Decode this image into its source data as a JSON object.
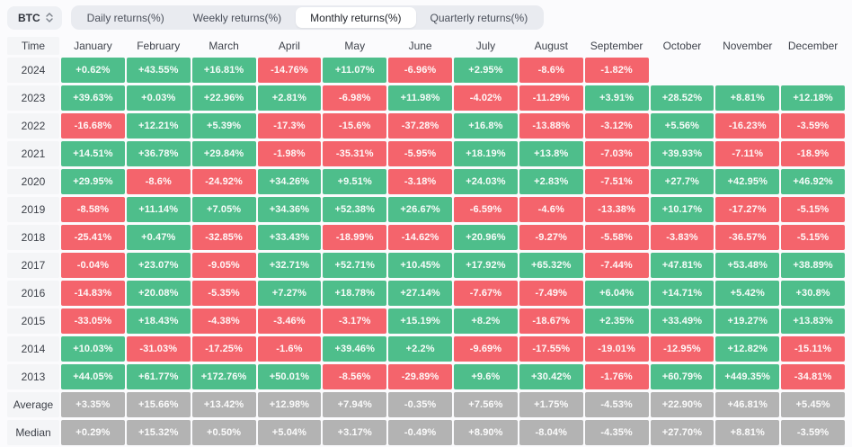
{
  "toolbar": {
    "symbol": "BTC",
    "tabs": [
      {
        "label": "Daily returns(%)",
        "active": false
      },
      {
        "label": "Weekly returns(%)",
        "active": false
      },
      {
        "label": "Monthly returns(%)",
        "active": true
      },
      {
        "label": "Quarterly returns(%)",
        "active": false
      }
    ]
  },
  "table": {
    "corner_label": "Time",
    "columns": [
      "January",
      "February",
      "March",
      "April",
      "May",
      "June",
      "July",
      "August",
      "September",
      "October",
      "November",
      "December"
    ],
    "rows": [
      {
        "label": "2024",
        "type": "year",
        "values": [
          "+0.62%",
          "+43.55%",
          "+16.81%",
          "-14.76%",
          "+11.07%",
          "-6.96%",
          "+2.95%",
          "-8.6%",
          "-1.82%",
          "",
          "",
          ""
        ]
      },
      {
        "label": "2023",
        "type": "year",
        "values": [
          "+39.63%",
          "+0.03%",
          "+22.96%",
          "+2.81%",
          "-6.98%",
          "+11.98%",
          "-4.02%",
          "-11.29%",
          "+3.91%",
          "+28.52%",
          "+8.81%",
          "+12.18%"
        ]
      },
      {
        "label": "2022",
        "type": "year",
        "values": [
          "-16.68%",
          "+12.21%",
          "+5.39%",
          "-17.3%",
          "-15.6%",
          "-37.28%",
          "+16.8%",
          "-13.88%",
          "-3.12%",
          "+5.56%",
          "-16.23%",
          "-3.59%"
        ]
      },
      {
        "label": "2021",
        "type": "year",
        "values": [
          "+14.51%",
          "+36.78%",
          "+29.84%",
          "-1.98%",
          "-35.31%",
          "-5.95%",
          "+18.19%",
          "+13.8%",
          "-7.03%",
          "+39.93%",
          "-7.11%",
          "-18.9%"
        ]
      },
      {
        "label": "2020",
        "type": "year",
        "values": [
          "+29.95%",
          "-8.6%",
          "-24.92%",
          "+34.26%",
          "+9.51%",
          "-3.18%",
          "+24.03%",
          "+2.83%",
          "-7.51%",
          "+27.7%",
          "+42.95%",
          "+46.92%"
        ]
      },
      {
        "label": "2019",
        "type": "year",
        "values": [
          "-8.58%",
          "+11.14%",
          "+7.05%",
          "+34.36%",
          "+52.38%",
          "+26.67%",
          "-6.59%",
          "-4.6%",
          "-13.38%",
          "+10.17%",
          "-17.27%",
          "-5.15%"
        ]
      },
      {
        "label": "2018",
        "type": "year",
        "values": [
          "-25.41%",
          "+0.47%",
          "-32.85%",
          "+33.43%",
          "-18.99%",
          "-14.62%",
          "+20.96%",
          "-9.27%",
          "-5.58%",
          "-3.83%",
          "-36.57%",
          "-5.15%"
        ]
      },
      {
        "label": "2017",
        "type": "year",
        "values": [
          "-0.04%",
          "+23.07%",
          "-9.05%",
          "+32.71%",
          "+52.71%",
          "+10.45%",
          "+17.92%",
          "+65.32%",
          "-7.44%",
          "+47.81%",
          "+53.48%",
          "+38.89%"
        ]
      },
      {
        "label": "2016",
        "type": "year",
        "values": [
          "-14.83%",
          "+20.08%",
          "-5.35%",
          "+7.27%",
          "+18.78%",
          "+27.14%",
          "-7.67%",
          "-7.49%",
          "+6.04%",
          "+14.71%",
          "+5.42%",
          "+30.8%"
        ]
      },
      {
        "label": "2015",
        "type": "year",
        "values": [
          "-33.05%",
          "+18.43%",
          "-4.38%",
          "-3.46%",
          "-3.17%",
          "+15.19%",
          "+8.2%",
          "-18.67%",
          "+2.35%",
          "+33.49%",
          "+19.27%",
          "+13.83%"
        ]
      },
      {
        "label": "2014",
        "type": "year",
        "values": [
          "+10.03%",
          "-31.03%",
          "-17.25%",
          "-1.6%",
          "+39.46%",
          "+2.2%",
          "-9.69%",
          "-17.55%",
          "-19.01%",
          "-12.95%",
          "+12.82%",
          "-15.11%"
        ]
      },
      {
        "label": "2013",
        "type": "year",
        "values": [
          "+44.05%",
          "+61.77%",
          "+172.76%",
          "+50.01%",
          "-8.56%",
          "-29.89%",
          "+9.6%",
          "+30.42%",
          "-1.76%",
          "+60.79%",
          "+449.35%",
          "-34.81%"
        ]
      },
      {
        "label": "Average",
        "type": "summary",
        "values": [
          "+3.35%",
          "+15.66%",
          "+13.42%",
          "+12.98%",
          "+7.94%",
          "-0.35%",
          "+7.56%",
          "+1.75%",
          "-4.53%",
          "+22.90%",
          "+46.81%",
          "+5.45%"
        ]
      },
      {
        "label": "Median",
        "type": "summary",
        "values": [
          "+0.29%",
          "+15.32%",
          "+0.50%",
          "+5.04%",
          "+3.17%",
          "-0.49%",
          "+8.90%",
          "-8.04%",
          "-4.35%",
          "+27.70%",
          "+8.81%",
          "-3.59%"
        ]
      }
    ]
  },
  "colors": {
    "positive": "#4ebe8b",
    "negative": "#f4646c",
    "summary": "#b3b3b3"
  }
}
